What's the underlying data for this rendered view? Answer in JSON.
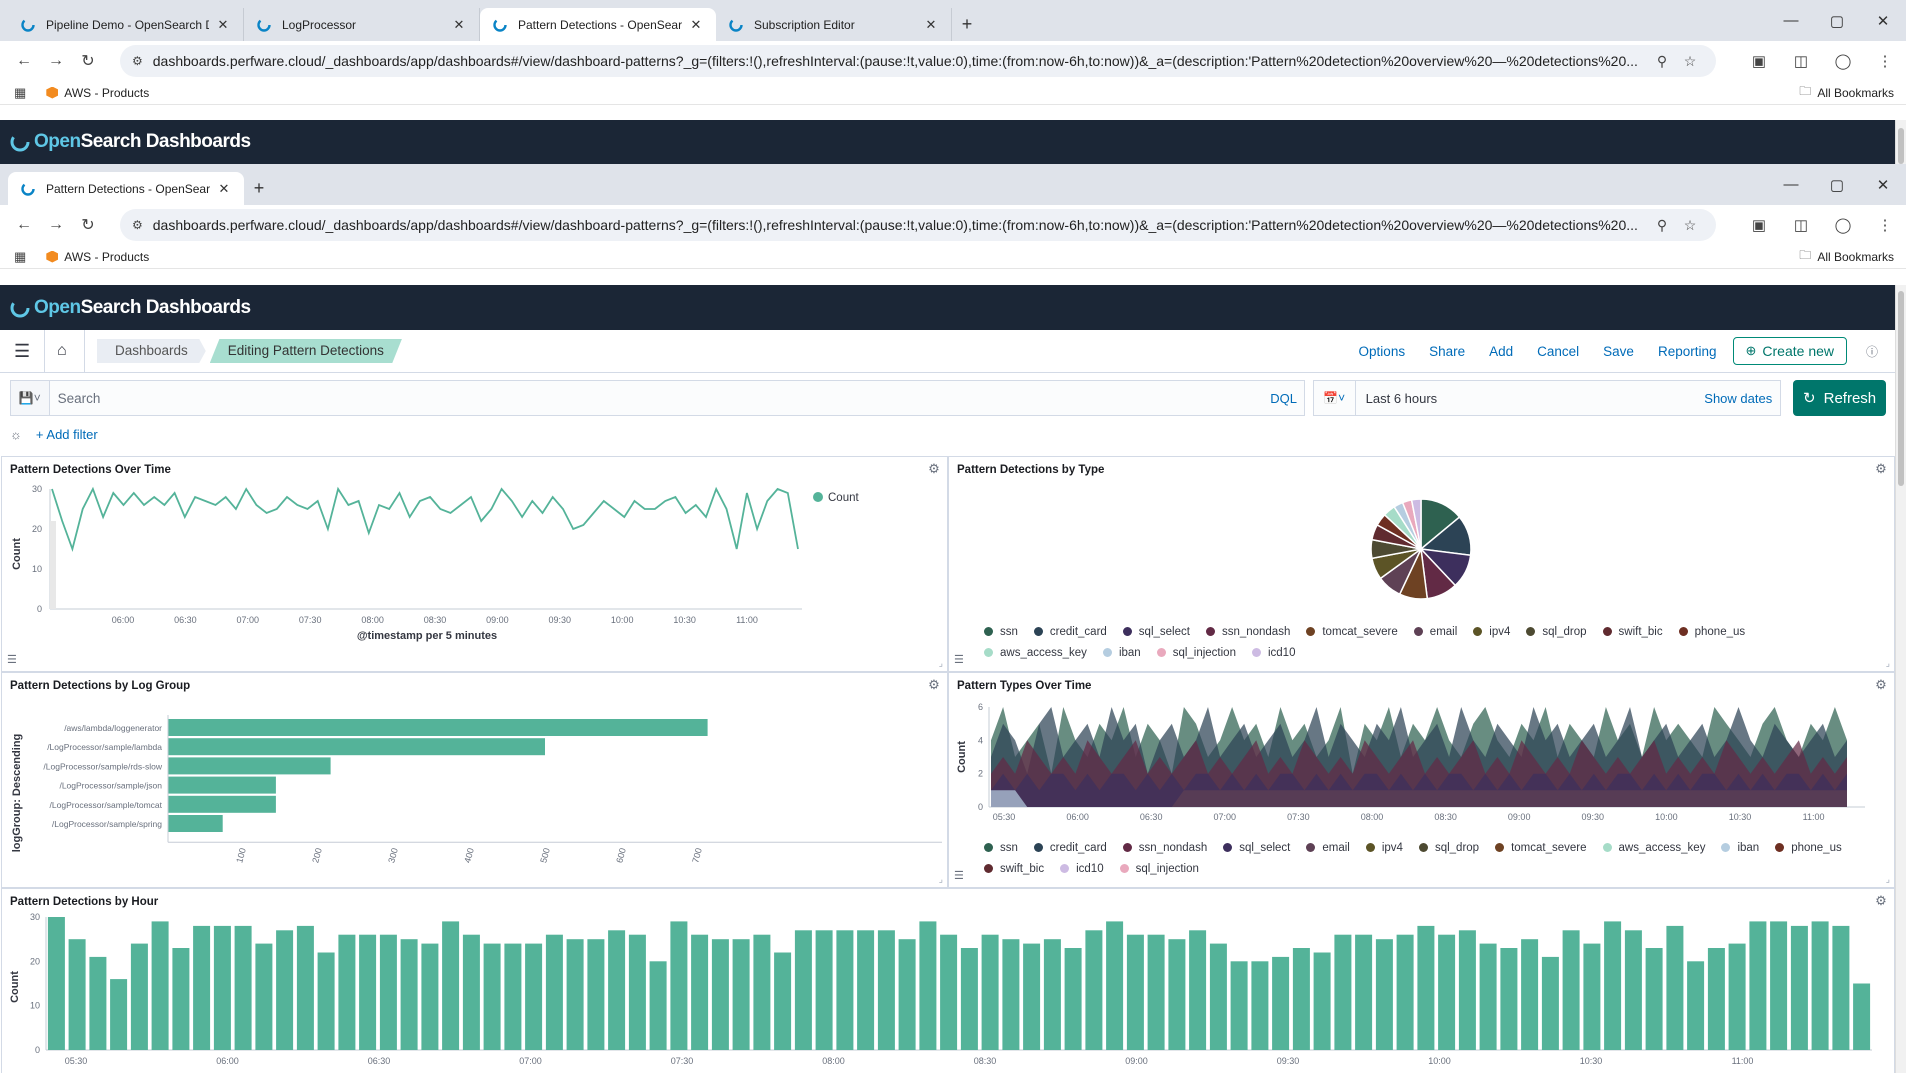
{
  "browser_outer": {
    "tabs": [
      {
        "title": "Pipeline Demo - OpenSearch D",
        "active": false
      },
      {
        "title": "LogProcessor",
        "active": false
      },
      {
        "title": "Pattern Detections - OpenSearc",
        "active": true
      },
      {
        "title": "Subscription Editor",
        "active": false
      }
    ],
    "url": "dashboards.perfware.cloud/_dashboards/app/dashboards#/view/dashboard-patterns?_g=(filters:!(),refreshInterval:(pause:!t,value:0),time:(from:now-6h,to:now))&_a=(description:'Pattern%20detection%20overview%20—%20detections%20...",
    "bookmark": "AWS - Products",
    "all_bookmarks": "All Bookmarks"
  },
  "browser_inner": {
    "tabs": [
      {
        "title": "Pattern Detections - OpenSearc",
        "active": true
      }
    ],
    "url": "dashboards.perfware.cloud/_dashboards/app/dashboards#/view/dashboard-patterns?_g=(filters:!(),refreshInterval:(pause:!t,value:0),time:(from:now-6h,to:now))&_a=(description:'Pattern%20detection%20overview%20—%20detections%20...",
    "bookmark": "AWS - Products",
    "all_bookmarks": "All Bookmarks"
  },
  "header": {
    "brand_open": "Open",
    "brand_rest": "Search Dashboards"
  },
  "appbar": {
    "breadcrumbs": [
      "Dashboards",
      "Editing Pattern Detections"
    ],
    "menu": [
      "Options",
      "Share",
      "Add",
      "Cancel",
      "Save",
      "Reporting"
    ],
    "create_new": "Create new"
  },
  "query": {
    "placeholder": "Search",
    "dql": "DQL",
    "time_label": "Last 6 hours",
    "show_dates": "Show dates",
    "refresh": "Refresh",
    "add_filter": "+ Add filter"
  },
  "colors": {
    "accent": "#54b399",
    "header": "#1b2636",
    "link": "#006bb8",
    "button": "#00766b"
  },
  "panels": {
    "over_time": {
      "title": "Pattern Detections Over Time",
      "ylabel": "Count",
      "xlabel": "@timestamp per 5 minutes",
      "legend": "Count"
    },
    "by_type": {
      "title": "Pattern Detections by Type"
    },
    "by_log_group": {
      "title": "Pattern Detections by Log Group",
      "ylabel": "logGroup: Descending",
      "xlabel": "Count"
    },
    "types_over_time": {
      "title": "Pattern Types Over Time",
      "ylabel": "Count",
      "xlabel": "@timestamp per 5 minutes"
    },
    "by_hour": {
      "title": "Pattern Detections by Hour",
      "ylabel": "Count"
    }
  },
  "chart_data": [
    {
      "type": "line",
      "title": "Pattern Detections Over Time",
      "xlabel": "@timestamp per 5 minutes",
      "ylabel": "Count",
      "ylim": [
        0,
        30
      ],
      "yticks": [
        0,
        10,
        20,
        30
      ],
      "xticks": [
        "06:00",
        "06:30",
        "07:00",
        "07:30",
        "08:00",
        "08:30",
        "09:00",
        "09:30",
        "10:00",
        "10:30",
        "11:00"
      ],
      "series": [
        {
          "name": "Count",
          "values": [
            30,
            22,
            15,
            25,
            30,
            23,
            29,
            26,
            29,
            26,
            28,
            26,
            29,
            23,
            28,
            27,
            26,
            28,
            25,
            30,
            26,
            24,
            25,
            28,
            26,
            25,
            27,
            20,
            30,
            26,
            27,
            19,
            26,
            25,
            29,
            23,
            27,
            28,
            25,
            24,
            26,
            28,
            22,
            25,
            30,
            27,
            23,
            27,
            24,
            28,
            25,
            20,
            21,
            24,
            27,
            25,
            23,
            27,
            25,
            25,
            27,
            28,
            24,
            26,
            23,
            30,
            25,
            15,
            29,
            20,
            27,
            30,
            29,
            15
          ]
        }
      ],
      "legend": "top-right",
      "grid": false
    },
    {
      "type": "pie",
      "title": "Pattern Detections by Type",
      "labels": [
        "ssn",
        "credit_card",
        "sql_select",
        "ssn_nondash",
        "tomcat_severe",
        "email",
        "ipv4",
        "sql_drop",
        "swift_bic",
        "phone_us",
        "aws_access_key",
        "iban",
        "sql_injection",
        "icd10"
      ],
      "values": [
        14,
        13,
        11,
        10,
        9,
        8,
        7,
        6,
        5,
        4,
        4,
        3,
        3,
        3
      ],
      "colors": [
        "#2e6150",
        "#2c4355",
        "#3d2f5d",
        "#622a45",
        "#6e4223",
        "#5e4155",
        "#5c5426",
        "#4d4a32",
        "#602b30",
        "#6e2f22",
        "#a6dcc8",
        "#b5cde0",
        "#e9a9bd",
        "#cdbbe3"
      ],
      "legend": "bottom"
    },
    {
      "type": "bar",
      "orientation": "horizontal",
      "title": "Pattern Detections by Log Group",
      "ylabel": "logGroup: Descending",
      "xlabel": "Count",
      "categories": [
        "/aws/lambda/loggenerator",
        "/LogProcessor/sample/lambda",
        "/LogProcessor/sample/rds-slow",
        "/LogProcessor/sample/json",
        "/LogProcessor/sample/tomcat",
        "/LogProcessor/sample/spring"
      ],
      "values": [
        710,
        496,
        214,
        142,
        142,
        72
      ],
      "xticks": [
        100,
        200,
        300,
        400,
        500,
        600,
        700
      ]
    },
    {
      "type": "area",
      "title": "Pattern Types Over Time",
      "xlabel": "@timestamp per 5 minutes",
      "ylabel": "Count",
      "ylim": [
        0,
        6
      ],
      "yticks": [
        0,
        2,
        4,
        6
      ],
      "xticks": [
        "05:30",
        "06:00",
        "06:30",
        "07:00",
        "07:30",
        "08:00",
        "08:30",
        "09:00",
        "09:30",
        "10:00",
        "10:30",
        "11:00"
      ],
      "series": [
        {
          "name": "ssn",
          "values": [
            4,
            6,
            3,
            4,
            5,
            2,
            6,
            4,
            3,
            5,
            4,
            6,
            3,
            5,
            4,
            2,
            6,
            5,
            3,
            4,
            6,
            4,
            5,
            3,
            6,
            4,
            5,
            3,
            4,
            6,
            2,
            5,
            4,
            6,
            3,
            5,
            4,
            6,
            4,
            3,
            5,
            6,
            4,
            3,
            5,
            4,
            6,
            3,
            5,
            4,
            3,
            6,
            4,
            5,
            3,
            6,
            4,
            5,
            4,
            3,
            6,
            5,
            4,
            3,
            5,
            6,
            4,
            3,
            5,
            4,
            6,
            4
          ]
        },
        {
          "name": "credit_card",
          "values": [
            3,
            5,
            4,
            2,
            5,
            6,
            3,
            4,
            5,
            3,
            6,
            4,
            5,
            2,
            4,
            5,
            3,
            4,
            6,
            3,
            4,
            5,
            3,
            4,
            5,
            3,
            4,
            6,
            3,
            5,
            4,
            3,
            5,
            4,
            6,
            3,
            4,
            5,
            3,
            6,
            4,
            3,
            5,
            4,
            3,
            6,
            4,
            5,
            3,
            4,
            5,
            3,
            4,
            6,
            3,
            4,
            5,
            3,
            4,
            5,
            3,
            4,
            6,
            4,
            3,
            5,
            4,
            3,
            4,
            5,
            3,
            4
          ]
        },
        {
          "name": "ssn_nondash",
          "values": [
            2,
            3,
            2,
            4,
            3,
            2,
            3,
            2,
            4,
            3,
            2,
            3,
            4,
            2,
            3,
            2,
            3,
            4,
            2,
            3,
            2,
            3,
            4,
            2,
            3,
            2,
            4,
            3,
            2,
            3,
            2,
            4,
            3,
            2,
            3,
            4,
            2,
            3,
            2,
            3,
            4,
            2,
            3,
            2,
            4,
            3,
            2,
            3,
            2,
            4,
            3,
            2,
            3,
            2,
            3,
            4,
            2,
            3,
            2,
            3,
            2,
            4,
            3,
            2,
            3,
            2,
            3,
            4,
            2,
            3,
            2,
            3
          ]
        },
        {
          "name": "sql_select",
          "values": [
            1,
            2,
            1,
            2,
            1,
            2,
            2,
            1,
            2,
            1,
            2,
            2,
            1,
            2,
            1,
            2,
            1,
            2,
            2,
            1,
            2,
            1,
            2,
            1,
            2,
            2,
            1,
            2,
            1,
            2,
            1,
            2,
            2,
            1,
            2,
            1,
            2,
            1,
            2,
            2,
            1,
            2,
            1,
            2,
            1,
            2,
            2,
            1,
            2,
            1,
            2,
            1,
            2,
            2,
            1,
            2,
            1,
            2,
            1,
            2,
            2,
            1,
            2,
            1,
            2,
            1,
            2,
            2,
            1,
            2,
            1,
            2
          ]
        },
        {
          "name": "email",
          "values": [
            0,
            0,
            0,
            0,
            0,
            0,
            0,
            0,
            0,
            0,
            0,
            0,
            0,
            0,
            0,
            0,
            1,
            1,
            1,
            1,
            1,
            1,
            1,
            1,
            1,
            1,
            1,
            1,
            1,
            1,
            1,
            1,
            1,
            1,
            1,
            1,
            1,
            1,
            1,
            1,
            1,
            1,
            1,
            1,
            1,
            1,
            1,
            1,
            1,
            1,
            1,
            1,
            1,
            1,
            1,
            1,
            1,
            1,
            1,
            1,
            1,
            1,
            1,
            1,
            1,
            1,
            1,
            1,
            1,
            1,
            1,
            1
          ]
        },
        {
          "name": "iban",
          "values": [
            1,
            1,
            1,
            0,
            0,
            0,
            0,
            0,
            0,
            0,
            0,
            0,
            0,
            0,
            0,
            0,
            0,
            0,
            0,
            0,
            0,
            0,
            0,
            0,
            0,
            0,
            0,
            0,
            0,
            0,
            0,
            0,
            0,
            0,
            0,
            0,
            0,
            0,
            0,
            0,
            0,
            0,
            0,
            0,
            0,
            0,
            0,
            0,
            0,
            0,
            0,
            0,
            0,
            0,
            0,
            0,
            0,
            0,
            0,
            0,
            0,
            0,
            0,
            0,
            0,
            0,
            0,
            0,
            0,
            0,
            0,
            0
          ]
        }
      ],
      "legend": [
        "ssn",
        "credit_card",
        "ssn_nondash",
        "sql_select",
        "email",
        "ipv4",
        "sql_drop",
        "tomcat_severe",
        "aws_access_key",
        "iban",
        "phone_us",
        "swift_bic",
        "icd10",
        "sql_injection"
      ],
      "legend_colors": [
        "#2e6150",
        "#2c4355",
        "#622a45",
        "#3d2f5d",
        "#5e4155",
        "#5c5426",
        "#4d4a32",
        "#6e4223",
        "#a6dcc8",
        "#b5cde0",
        "#6e2f22",
        "#602b30",
        "#cdbbe3",
        "#e9a9bd"
      ]
    },
    {
      "type": "bar",
      "title": "Pattern Detections by Hour",
      "ylabel": "Count",
      "ylim": [
        0,
        30
      ],
      "yticks": [
        0,
        10,
        20,
        30
      ],
      "xticks": [
        "05:30",
        "06:00",
        "06:30",
        "07:00",
        "07:30",
        "08:00",
        "08:30",
        "09:00",
        "09:30",
        "10:00",
        "10:30",
        "11:00"
      ],
      "values": [
        30,
        25,
        21,
        16,
        24,
        29,
        23,
        28,
        28,
        28,
        24,
        27,
        28,
        22,
        26,
        26,
        26,
        25,
        24,
        29,
        26,
        24,
        24,
        24,
        26,
        25,
        25,
        27,
        26,
        20,
        29,
        26,
        25,
        25,
        26,
        22,
        27,
        27,
        27,
        27,
        27,
        25,
        29,
        26,
        23,
        26,
        25,
        24,
        25,
        23,
        27,
        29,
        26,
        26,
        25,
        27,
        24,
        20,
        20,
        21,
        23,
        22,
        26,
        26,
        25,
        26,
        28,
        26,
        27,
        24,
        23,
        25,
        21,
        27,
        24,
        29,
        27,
        23,
        28,
        20,
        23,
        24,
        29,
        29,
        28,
        29,
        28,
        15
      ]
    }
  ]
}
